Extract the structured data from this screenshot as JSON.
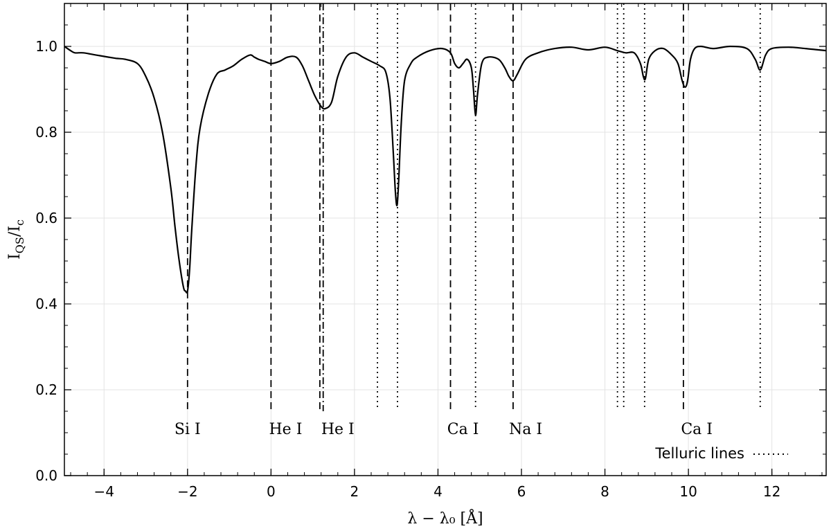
{
  "chart_data": {
    "type": "line",
    "xlabel": "λ − λ₀ [Å]",
    "ylabel": "I_QS/I_c",
    "xlim": [
      -4.95,
      13.3
    ],
    "ylim": [
      0.0,
      1.1
    ],
    "grid": true,
    "xticks": [
      -4,
      -2,
      0,
      2,
      4,
      6,
      8,
      10,
      12
    ],
    "xtick_labels": [
      "−4",
      "−2",
      "0",
      "2",
      "4",
      "6",
      "8",
      "10",
      "12"
    ],
    "yticks": [
      0.0,
      0.2,
      0.4,
      0.6,
      0.8,
      1.0
    ],
    "ytick_labels": [
      "0.0",
      "0.2",
      "0.4",
      "0.6",
      "0.8",
      "1.0"
    ],
    "series": [
      {
        "x": [
          -4.95,
          -4.8,
          -4.7,
          -4.5,
          -4.2,
          -3.9,
          -3.7,
          -3.5,
          -3.2,
          -3.0,
          -2.8,
          -2.6,
          -2.4,
          -2.3,
          -2.2,
          -2.1,
          -2.05,
          -2.0,
          -1.95,
          -1.9,
          -1.8,
          -1.7,
          -1.5,
          -1.3,
          -1.1,
          -0.9,
          -0.7,
          -0.5,
          -0.4,
          -0.3,
          -0.15,
          0.0,
          0.2,
          0.4,
          0.6,
          0.75,
          0.9,
          1.05,
          1.2,
          1.3,
          1.45,
          1.6,
          1.8,
          2.0,
          2.2,
          2.4,
          2.6,
          2.75,
          2.85,
          2.93,
          2.98,
          3.02,
          3.06,
          3.12,
          3.2,
          3.35,
          3.5,
          3.8,
          4.1,
          4.3,
          4.4,
          4.5,
          4.6,
          4.7,
          4.8,
          4.85,
          4.9,
          4.95,
          5.05,
          5.2,
          5.45,
          5.6,
          5.7,
          5.8,
          5.9,
          6.1,
          6.4,
          6.8,
          7.2,
          7.6,
          8.0,
          8.3,
          8.5,
          8.7,
          8.85,
          8.92,
          8.97,
          9.05,
          9.2,
          9.4,
          9.6,
          9.75,
          9.85,
          9.92,
          9.98,
          10.05,
          10.15,
          10.3,
          10.6,
          11.0,
          11.4,
          11.6,
          11.72,
          11.85,
          12.0,
          12.4,
          12.8,
          13.3
        ],
        "y": [
          1.0,
          0.99,
          0.985,
          0.985,
          0.98,
          0.975,
          0.972,
          0.97,
          0.96,
          0.93,
          0.88,
          0.8,
          0.67,
          0.58,
          0.5,
          0.44,
          0.43,
          0.43,
          0.48,
          0.57,
          0.72,
          0.81,
          0.89,
          0.935,
          0.945,
          0.955,
          0.97,
          0.98,
          0.975,
          0.97,
          0.965,
          0.96,
          0.965,
          0.975,
          0.975,
          0.955,
          0.92,
          0.885,
          0.86,
          0.855,
          0.87,
          0.93,
          0.975,
          0.985,
          0.975,
          0.965,
          0.955,
          0.94,
          0.88,
          0.75,
          0.66,
          0.63,
          0.69,
          0.82,
          0.92,
          0.96,
          0.975,
          0.99,
          0.995,
          0.985,
          0.96,
          0.95,
          0.96,
          0.97,
          0.95,
          0.9,
          0.84,
          0.89,
          0.96,
          0.975,
          0.97,
          0.95,
          0.93,
          0.92,
          0.935,
          0.97,
          0.985,
          0.995,
          0.998,
          0.992,
          0.998,
          0.99,
          0.985,
          0.985,
          0.96,
          0.93,
          0.925,
          0.97,
          0.99,
          0.995,
          0.98,
          0.96,
          0.92,
          0.905,
          0.92,
          0.97,
          0.995,
          1.0,
          0.995,
          1.0,
          0.995,
          0.97,
          0.945,
          0.98,
          0.995,
          0.998,
          0.995,
          0.99
        ]
      }
    ],
    "reference_lines": [
      {
        "x": -2.0,
        "style": "dashed",
        "y_top": 1.1,
        "y_bottom": 0.15
      },
      {
        "x": 0.0,
        "style": "dashed",
        "y_top": 1.1,
        "y_bottom": 0.15
      },
      {
        "x": 1.17,
        "style": "dashed",
        "y_top": 1.1,
        "y_bottom": 0.15
      },
      {
        "x": 1.25,
        "style": "dashdot",
        "y_top": 1.1,
        "y_bottom": 0.15
      },
      {
        "x": 2.55,
        "style": "dotted",
        "y_top": 1.1,
        "y_bottom": 0.155
      },
      {
        "x": 3.03,
        "style": "dotted",
        "y_top": 1.1,
        "y_bottom": 0.155
      },
      {
        "x": 4.3,
        "style": "dashed",
        "y_top": 1.1,
        "y_bottom": 0.15
      },
      {
        "x": 4.9,
        "style": "dotted",
        "y_top": 1.1,
        "y_bottom": 0.155
      },
      {
        "x": 5.8,
        "style": "dashed",
        "y_top": 1.1,
        "y_bottom": 0.15
      },
      {
        "x": 8.3,
        "style": "dotted",
        "y_top": 1.1,
        "y_bottom": 0.155
      },
      {
        "x": 8.45,
        "style": "dotted",
        "y_top": 1.1,
        "y_bottom": 0.155
      },
      {
        "x": 8.95,
        "style": "dotted",
        "y_top": 1.1,
        "y_bottom": 0.155
      },
      {
        "x": 9.88,
        "style": "dashed",
        "y_top": 1.1,
        "y_bottom": 0.15
      },
      {
        "x": 11.72,
        "style": "dotted",
        "y_top": 1.1,
        "y_bottom": 0.155
      }
    ],
    "line_labels": [
      {
        "text": "Si I",
        "x": -2.0,
        "y": 0.11
      },
      {
        "text": "He I",
        "x": 0.35,
        "y": 0.11
      },
      {
        "text": "He I",
        "x": 1.6,
        "y": 0.11
      },
      {
        "text": "Ca I",
        "x": 4.6,
        "y": 0.11
      },
      {
        "text": "Na I",
        "x": 6.1,
        "y": 0.11
      },
      {
        "text": "Ca I",
        "x": 10.2,
        "y": 0.11
      }
    ],
    "legend": {
      "label": "Telluric lines",
      "style": "dotted",
      "position": "lower-right"
    }
  }
}
